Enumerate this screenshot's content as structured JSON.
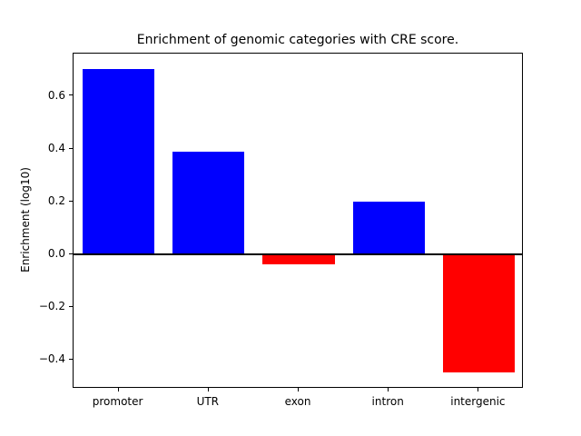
{
  "figure": {
    "title": "Enrichment of genomic categories with CRE score.",
    "ylabel": "Enrichment (log10)"
  },
  "chart_data": {
    "type": "bar",
    "title": "Enrichment of genomic categories with CRE score.",
    "xlabel": "",
    "ylabel": "Enrichment (log10)",
    "categories": [
      "promoter",
      "UTR",
      "exon",
      "intron",
      "intergenic"
    ],
    "values": [
      0.7,
      0.39,
      -0.04,
      0.2,
      -0.45
    ],
    "ylim": [
      -0.51,
      0.76
    ],
    "yticks": [
      -0.4,
      -0.2,
      0.0,
      0.2,
      0.4,
      0.6
    ],
    "bar_width_frac": 0.8,
    "grid": false,
    "legend": null,
    "colors": {
      "positive_bar": "#0000ff",
      "negative_bar": "#ff0000",
      "axis": "#000000",
      "background": "#ffffff"
    }
  }
}
